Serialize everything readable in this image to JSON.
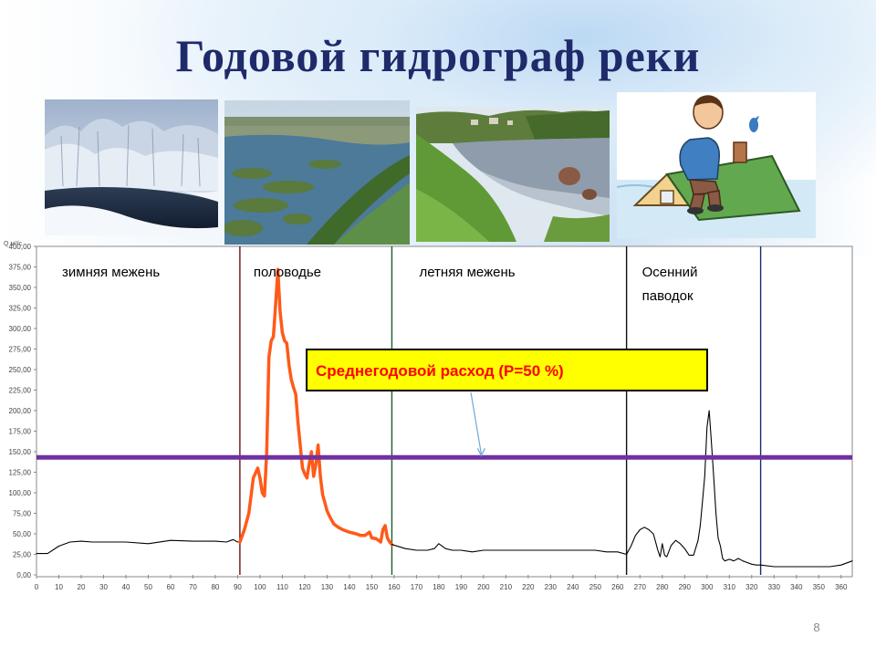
{
  "slide": {
    "title": "Годовой гидрограф реки",
    "page_number": "8",
    "photos": [
      {
        "name": "winter-river-photo"
      },
      {
        "name": "spring-flood-photo"
      },
      {
        "name": "summer-river-photo"
      },
      {
        "name": "flooded-house-cartoon"
      }
    ]
  },
  "colors": {
    "title": "#1f2a6b",
    "flood_series": "#ff5a1a",
    "base_series": "#000000",
    "mean_line": "#7030a0",
    "callout_fill": "#ffff00",
    "callout_text": "#ff0000",
    "winter_divider": "#6b1010",
    "summer_divider": "#1e5e2a",
    "autumn_divider": "#111111",
    "end_divider": "#1a2a6e"
  },
  "chart_data": {
    "type": "line",
    "title": "",
    "xlabel": "",
    "ylabel": "Q м³/с",
    "xlim": [
      0,
      365
    ],
    "ylim": [
      0,
      400
    ],
    "grid": false,
    "x_ticks": [
      0,
      10,
      20,
      30,
      40,
      50,
      60,
      70,
      80,
      90,
      100,
      110,
      120,
      130,
      140,
      150,
      160,
      170,
      180,
      190,
      200,
      210,
      220,
      230,
      240,
      250,
      260,
      270,
      280,
      290,
      300,
      310,
      320,
      330,
      340,
      350,
      360
    ],
    "y_ticks": [
      "0,00",
      "25,00",
      "50,00",
      "75,00",
      "100,00",
      "125,00",
      "150,00",
      "175,00",
      "200,00",
      "225,00",
      "250,00",
      "275,00",
      "300,00",
      "325,00",
      "350,00",
      "375,00",
      "400,00"
    ],
    "y_tick_values": [
      0,
      25,
      50,
      75,
      100,
      125,
      150,
      175,
      200,
      225,
      250,
      275,
      300,
      325,
      350,
      375,
      400
    ],
    "seasons": [
      {
        "label": "зимняя межень",
        "x_end": 91
      },
      {
        "label": "половодье",
        "x_end": 159
      },
      {
        "label": "летняя межень",
        "x_end": 264
      },
      {
        "label": "Осенний паводок",
        "label_lines": [
          "Осенний",
          "паводок"
        ],
        "x_end": 324
      }
    ],
    "mean_flow": {
      "value": 143,
      "label": "Среднегодовой расход (P=50 %)"
    },
    "series": [
      {
        "key": "winter",
        "color": "#000000",
        "x": [
          0,
          5,
          10,
          15,
          20,
          25,
          30,
          40,
          50,
          60,
          70,
          80,
          85,
          88,
          90,
          91
        ],
        "y": [
          26,
          26,
          35,
          40,
          41,
          40,
          40,
          40,
          38,
          42,
          41,
          41,
          40,
          43,
          40,
          40
        ]
      },
      {
        "key": "flood",
        "color": "#ff5a1a",
        "x": [
          91,
          93,
          95,
          97,
          99,
          100,
          101,
          102,
          103,
          104,
          105,
          106,
          107,
          108,
          109,
          110,
          111,
          112,
          113,
          114,
          115,
          116,
          117,
          118,
          119,
          120,
          121,
          122,
          123,
          124,
          125,
          126,
          127,
          128,
          129,
          130,
          131,
          132,
          133,
          134,
          135,
          137,
          140,
          143,
          145,
          147,
          149,
          150,
          152,
          154,
          155,
          156,
          157,
          158,
          159
        ],
        "y": [
          40,
          55,
          75,
          118,
          130,
          118,
          100,
          96,
          150,
          265,
          285,
          290,
          330,
          372,
          320,
          295,
          285,
          282,
          255,
          238,
          228,
          220,
          185,
          158,
          130,
          123,
          118,
          135,
          150,
          120,
          135,
          158,
          120,
          98,
          88,
          78,
          72,
          67,
          62,
          60,
          58,
          55,
          52,
          50,
          48,
          48,
          52,
          45,
          44,
          40,
          55,
          60,
          45,
          40,
          37
        ]
      },
      {
        "key": "summer",
        "color": "#000000",
        "x": [
          159,
          165,
          170,
          175,
          178,
          180,
          183,
          186,
          190,
          195,
          200,
          210,
          220,
          230,
          240,
          250,
          255,
          260,
          264
        ],
        "y": [
          37,
          32,
          30,
          30,
          32,
          38,
          32,
          30,
          30,
          28,
          30,
          30,
          30,
          30,
          30,
          30,
          28,
          28,
          25
        ]
      },
      {
        "key": "autumn",
        "color": "#000000",
        "x": [
          264,
          266,
          268,
          270,
          272,
          274,
          276,
          277,
          278,
          279,
          280,
          281,
          282,
          284,
          286,
          288,
          290,
          292,
          294,
          296,
          297,
          298,
          299,
          300,
          301,
          302,
          303,
          304,
          305,
          306,
          307,
          308,
          310,
          312,
          314,
          316,
          318,
          320,
          322,
          324
        ],
        "y": [
          25,
          35,
          48,
          55,
          58,
          55,
          50,
          40,
          30,
          22,
          38,
          24,
          22,
          36,
          42,
          38,
          32,
          24,
          24,
          42,
          60,
          90,
          120,
          180,
          200,
          160,
          120,
          75,
          45,
          35,
          20,
          17,
          19,
          17,
          20,
          17,
          15,
          13,
          12,
          12
        ]
      },
      {
        "key": "winter-end",
        "color": "#000000",
        "x": [
          324,
          330,
          335,
          340,
          345,
          350,
          355,
          360,
          365
        ],
        "y": [
          12,
          10,
          10,
          10,
          10,
          10,
          10,
          12,
          17
        ]
      }
    ]
  }
}
